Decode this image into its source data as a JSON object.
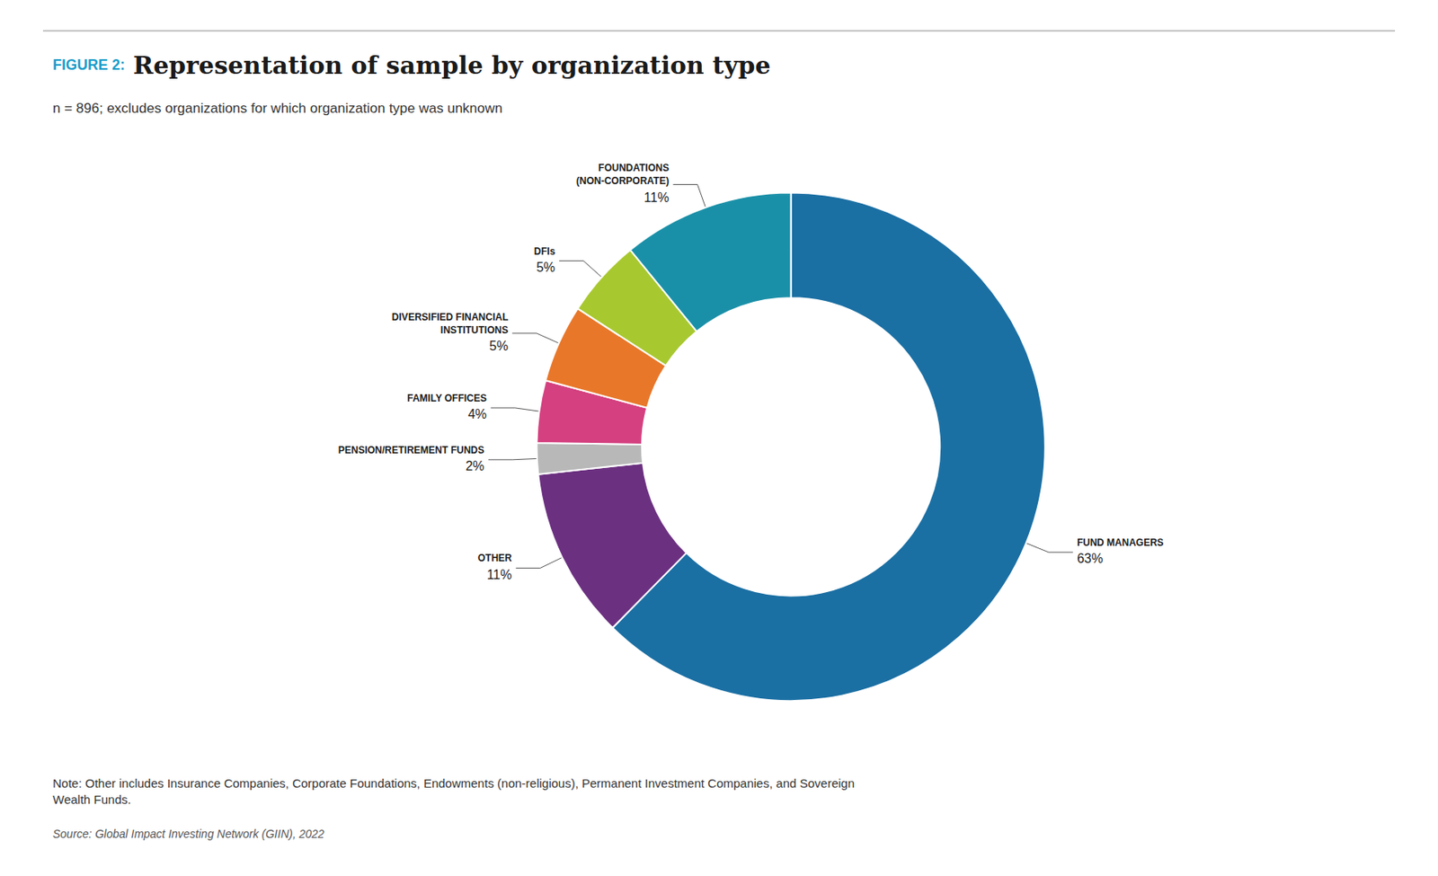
{
  "chart_data": {
    "type": "pie",
    "title_prefix": "FIGURE 2:",
    "title_prefix_color": "#1a9cc9",
    "title": "Representation of sample by organization type",
    "subtitle": "n = 896; excludes organizations for which organization type was unknown",
    "note": "Note: Other includes Insurance Companies, Corporate Foundations, Endowments (non-religious), Permanent Investment Companies, and Sovereign\nWealth Funds.",
    "source": "Source: Global Impact Investing Network (GIIN), 2022",
    "categories": [
      "FUND MANAGERS",
      "OTHER",
      "PENSION/RETIREMENT FUNDS",
      "FAMILY OFFICES",
      "DIVERSIFIED FINANCIAL\nINSTITUTIONS",
      "DFIs",
      "FOUNDATIONS\n(NON-CORPORATE)"
    ],
    "values": [
      63,
      11,
      2,
      4,
      5,
      5,
      11
    ],
    "value_labels": [
      "63%",
      "11%",
      "2%",
      "4%",
      "5%",
      "5%",
      "11%"
    ],
    "colors": [
      "#1a6fa3",
      "#6b3080",
      "#b8b8b8",
      "#d44080",
      "#e8772a",
      "#a8c830",
      "#1a90a8"
    ],
    "data_labels": true
  }
}
